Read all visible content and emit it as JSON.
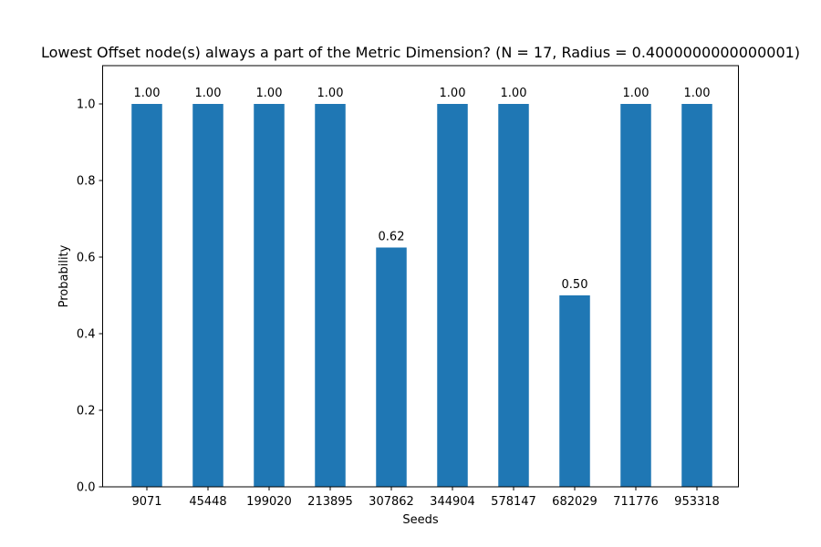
{
  "chart_data": {
    "type": "bar",
    "title": "Lowest Offset node(s) always a part of the Metric Dimension? (N = 17, Radius = 0.4000000000000001)",
    "xlabel": "Seeds",
    "ylabel": "Probability",
    "categories": [
      "9071",
      "45448",
      "199020",
      "213895",
      "307862",
      "344904",
      "578147",
      "682029",
      "711776",
      "953318"
    ],
    "values": [
      1.0,
      1.0,
      1.0,
      1.0,
      0.625,
      1.0,
      1.0,
      0.5,
      1.0,
      1.0
    ],
    "data_labels": [
      "1.00",
      "1.00",
      "1.00",
      "1.00",
      "0.62",
      "1.00",
      "1.00",
      "0.50",
      "1.00",
      "1.00"
    ],
    "ylim": [
      0,
      1.1
    ],
    "yticks": [
      0.0,
      0.2,
      0.4,
      0.6,
      0.8,
      1.0
    ],
    "ytick_labels": [
      "0.0",
      "0.2",
      "0.4",
      "0.6",
      "0.8",
      "1.0"
    ],
    "bar_color": "#1f77b4",
    "grid": false,
    "legend": "none"
  }
}
